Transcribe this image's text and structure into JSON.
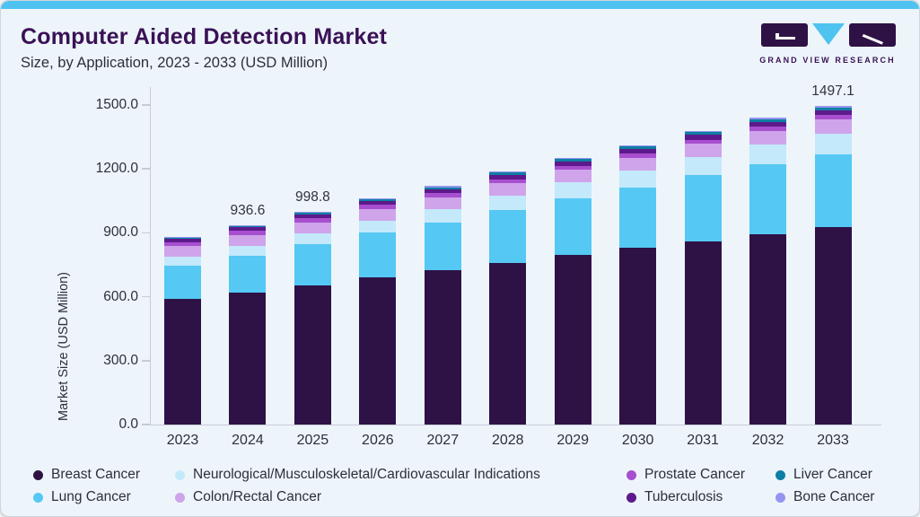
{
  "page": {
    "title": "Computer Aided Detection Market",
    "subtitle": "Size, by Application, 2023 - 2033 (USD Million)"
  },
  "logo": {
    "text": "GRAND VIEW RESEARCH"
  },
  "colors": {
    "accent_strip": "#4ec3ef",
    "title_purple": "#3a1155",
    "axis_gray": "#c6cbd4",
    "text_dark": "#2e2e3a"
  },
  "chart_data": {
    "type": "bar",
    "stacked": true,
    "title": "Computer Aided Detection Market Size, by Application, 2023 - 2033 (USD Million)",
    "xlabel": "",
    "ylabel": "Market Size (USD Million)",
    "ylim": [
      0,
      1500
    ],
    "ytick_step": 300,
    "yticks": [
      "0.0",
      "300.0",
      "600.0",
      "900.0",
      "1200.0",
      "1500.0"
    ],
    "grid": false,
    "legend_position": "bottom",
    "categories": [
      "2023",
      "2024",
      "2025",
      "2026",
      "2027",
      "2028",
      "2029",
      "2030",
      "2031",
      "2032",
      "2033"
    ],
    "series": [
      {
        "name": "Breast Cancer",
        "color": "#2e1245",
        "values": [
          588.7,
          619.5,
          655.0,
          690.0,
          725.0,
          760.4,
          798.4,
          829.2,
          861.7,
          892.5,
          925.1
        ]
      },
      {
        "name": "Lung Cancer",
        "color": "#55c8f4",
        "values": [
          157.7,
          173.9,
          191.3,
          210.4,
          222.6,
          246.6,
          263.7,
          282.5,
          307.9,
          330.1,
          345.0
        ]
      },
      {
        "name": "Neurological/Musculoskeletal/Cardiovascular Indications",
        "color": "#c3e9fb",
        "values": [
          42.2,
          47.0,
          52.0,
          58.0,
          63.0,
          68.5,
          74.0,
          79.5,
          85.0,
          90.5,
          95.8
        ]
      },
      {
        "name": "Colon/Rectal Cancer",
        "color": "#cfa4ea",
        "values": [
          48.0,
          50.0,
          52.0,
          53.8,
          55.6,
          57.4,
          59.2,
          61.0,
          63.0,
          64.6,
          66.3
        ]
      },
      {
        "name": "Prostate Cancer",
        "color": "#a84fd0",
        "values": [
          18.5,
          19.0,
          19.2,
          19.4,
          19.5,
          19.6,
          19.7,
          19.8,
          19.9,
          19.9,
          19.5
        ]
      },
      {
        "name": "Tuberculosis",
        "color": "#5e1a8c",
        "values": [
          16.0,
          17.0,
          17.8,
          18.6,
          19.4,
          20.1,
          20.7,
          21.3,
          21.8,
          22.3,
          22.7
        ]
      },
      {
        "name": "Liver Cancer",
        "color": "#0f7ea3",
        "values": [
          6.0,
          6.8,
          7.7,
          8.6,
          9.5,
          10.4,
          11.4,
          12.4,
          13.4,
          14.3,
          15.2
        ]
      },
      {
        "name": "Bone Cancer",
        "color": "#9595f0",
        "values": [
          3.0,
          3.4,
          3.8,
          4.2,
          4.6,
          5.0,
          5.5,
          6.0,
          6.5,
          7.0,
          7.5
        ]
      }
    ],
    "totals": [
      880.1,
      936.6,
      998.8,
      1063.0,
      1119.2,
      1188.0,
      1252.6,
      1311.7,
      1379.2,
      1441.2,
      1497.1
    ],
    "total_labels": {
      "2024": "936.6",
      "2025": "998.8",
      "2033": "1497.1"
    }
  },
  "legend_order": [
    "Breast Cancer",
    "Neurological/Musculoskeletal/Cardiovascular Indications",
    "Prostate Cancer",
    "Liver Cancer",
    "Lung Cancer",
    "Colon/Rectal Cancer",
    "Tuberculosis",
    "Bone Cancer"
  ]
}
